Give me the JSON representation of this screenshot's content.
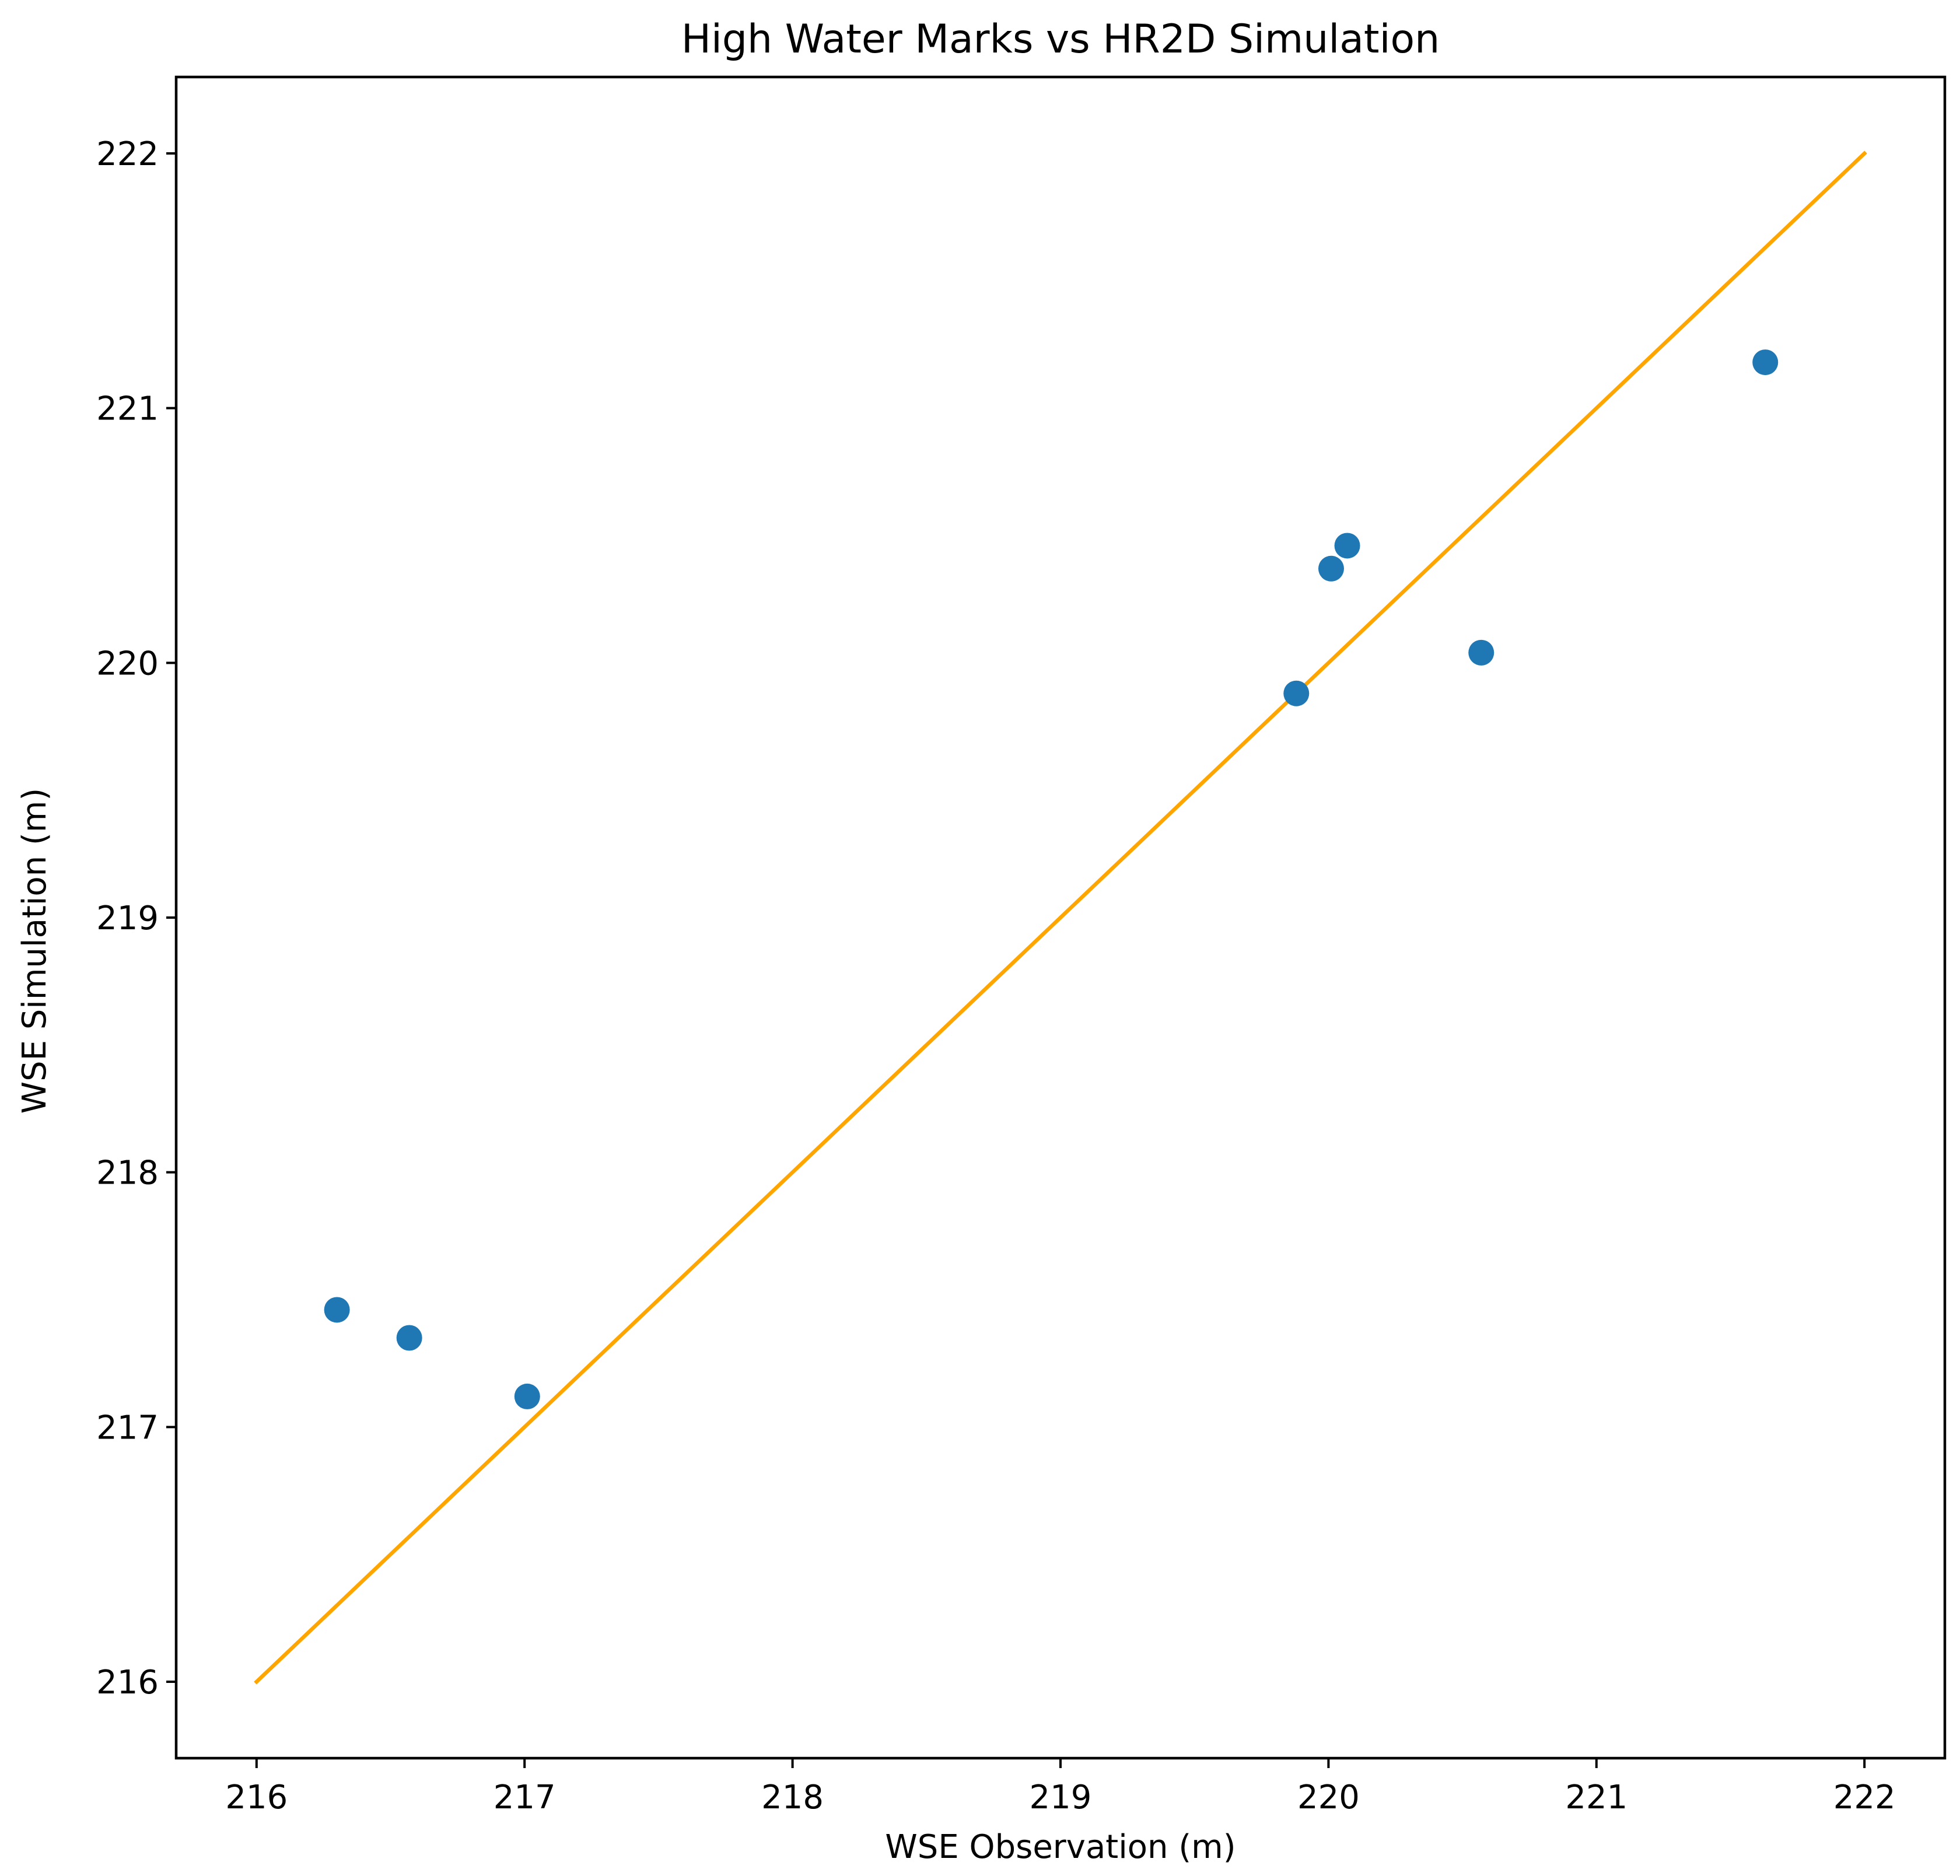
{
  "chart_data": {
    "type": "scatter",
    "title": "High Water Marks vs HR2D Simulation",
    "xlabel": "WSE Observation (m)",
    "ylabel": "WSE Simulation (m)",
    "xlim": [
      215.7,
      222.3
    ],
    "ylim": [
      215.7,
      222.3
    ],
    "xticks": [
      216,
      217,
      218,
      219,
      220,
      221,
      222
    ],
    "yticks": [
      216,
      217,
      218,
      219,
      220,
      221,
      222
    ],
    "grid": false,
    "points": [
      {
        "x": 216.3,
        "y": 217.46
      },
      {
        "x": 216.57,
        "y": 217.35
      },
      {
        "x": 217.01,
        "y": 217.12
      },
      {
        "x": 219.88,
        "y": 219.88
      },
      {
        "x": 220.01,
        "y": 220.37
      },
      {
        "x": 220.07,
        "y": 220.46
      },
      {
        "x": 220.57,
        "y": 220.04
      },
      {
        "x": 221.63,
        "y": 221.18
      }
    ],
    "reference_line": {
      "x": [
        216,
        222
      ],
      "y": [
        216,
        222
      ]
    },
    "colors": {
      "points": "#1f77b4",
      "reference_line": "#ffa500",
      "axes": "#000000"
    }
  }
}
